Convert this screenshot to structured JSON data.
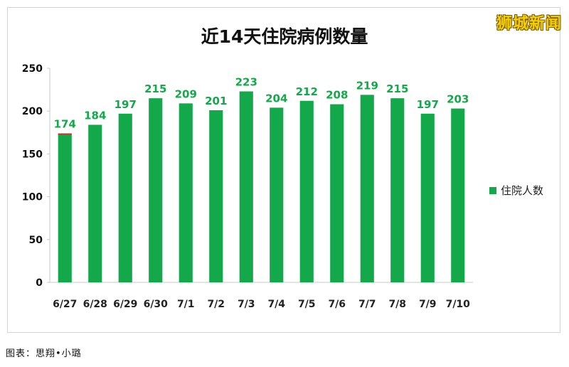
{
  "watermark": "狮城新闻",
  "caption": "图表：思翔•小璐",
  "colors": {
    "bar": "#13a84a",
    "label": "#13a84a",
    "cap": "#c0392b",
    "grid": "#c8c8c8"
  },
  "chart_data": {
    "type": "bar",
    "title": "近14天住院病例数量",
    "xlabel": "",
    "ylabel": "",
    "categories": [
      "6/27",
      "6/28",
      "6/29",
      "6/30",
      "7/1",
      "7/2",
      "7/3",
      "7/4",
      "7/5",
      "7/6",
      "7/7",
      "7/8",
      "7/9",
      "7/10"
    ],
    "series": [
      {
        "name": "住院人数",
        "values": [
          174,
          184,
          197,
          215,
          209,
          201,
          223,
          204,
          212,
          208,
          219,
          215,
          197,
          203
        ]
      }
    ],
    "ylim": [
      0,
      250
    ],
    "yticks": [
      0,
      50,
      100,
      150,
      200,
      250
    ],
    "grid": false,
    "legend": "right"
  }
}
